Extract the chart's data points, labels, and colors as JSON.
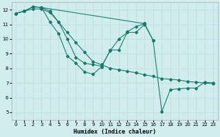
{
  "xlabel": "Humidex (Indice chaleur)",
  "bg_color": "#d0ecee",
  "grid_color": "#b8dce0",
  "line_color": "#1a7a6a",
  "xlim": [
    -0.5,
    23.5
  ],
  "ylim": [
    4.5,
    12.5
  ],
  "xticks": [
    0,
    1,
    2,
    3,
    4,
    5,
    6,
    7,
    8,
    9,
    10,
    11,
    12,
    13,
    14,
    15,
    16,
    17,
    18,
    19,
    20,
    21,
    22,
    23
  ],
  "yticks": [
    5,
    6,
    7,
    8,
    9,
    10,
    11,
    12
  ],
  "lines": [
    {
      "x": [
        0,
        1,
        2,
        3,
        4,
        5,
        6,
        7,
        8,
        9,
        10,
        11,
        12,
        13,
        14,
        15,
        16,
        17,
        18,
        19,
        20,
        21,
        22,
        23
      ],
      "y": [
        11.75,
        11.9,
        12.05,
        12.05,
        11.8,
        11.15,
        10.45,
        9.75,
        9.1,
        8.45,
        8.25,
        8.0,
        7.9,
        7.8,
        7.7,
        7.55,
        7.45,
        7.3,
        7.25,
        7.2,
        7.1,
        7.05,
        7.0,
        6.95
      ]
    },
    {
      "x": [
        0,
        1,
        2,
        3,
        4,
        5,
        6,
        7,
        8,
        9,
        10,
        11,
        12,
        13,
        14,
        15,
        16
      ],
      "y": [
        11.75,
        11.9,
        12.2,
        12.15,
        11.9,
        11.15,
        10.0,
        8.75,
        8.35,
        8.25,
        8.15,
        9.2,
        10.0,
        10.45,
        10.45,
        11.0,
        9.9
      ]
    },
    {
      "x": [
        0,
        1,
        2,
        3,
        4,
        5,
        6,
        7,
        8,
        9,
        10,
        11,
        12,
        13,
        14,
        15
      ],
      "y": [
        11.75,
        11.9,
        12.2,
        12.15,
        11.15,
        10.35,
        8.85,
        8.35,
        7.75,
        7.6,
        8.1,
        9.25,
        9.25,
        10.5,
        10.85,
        11.05
      ]
    },
    {
      "x": [
        0,
        1,
        2,
        3,
        15,
        16,
        17,
        18,
        19,
        20,
        21,
        22,
        23
      ],
      "y": [
        11.75,
        11.9,
        12.2,
        12.15,
        11.05,
        9.9,
        5.05,
        6.55,
        6.6,
        6.65,
        6.65,
        7.05,
        7.0
      ]
    }
  ]
}
